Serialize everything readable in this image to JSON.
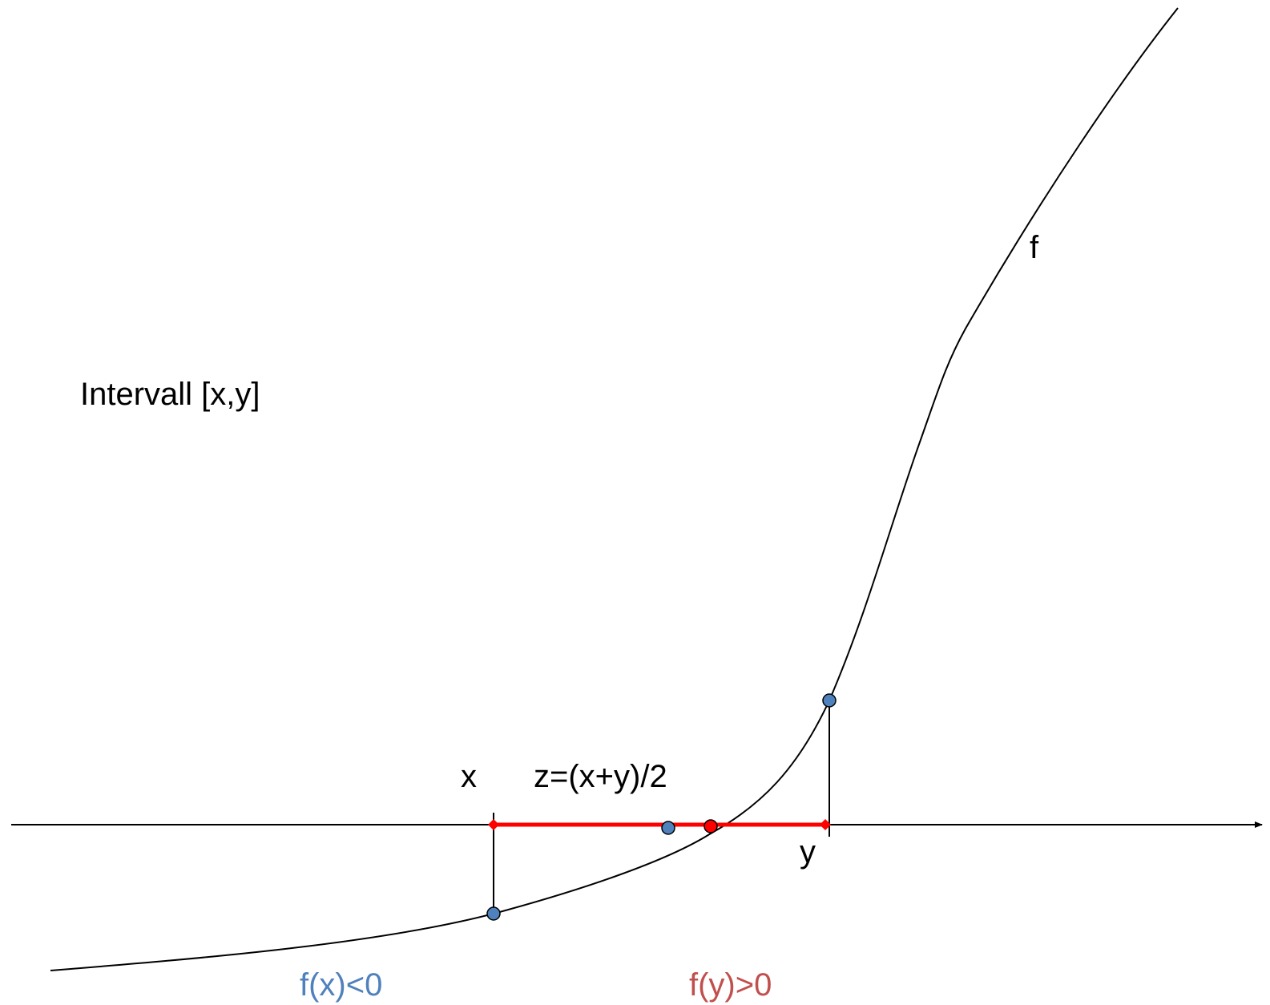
{
  "diagram": {
    "interval_label": "Intervall [x,y]",
    "curve_label": "f",
    "x_label": "x",
    "y_label": "y",
    "midpoint_label": "z=(x+y)/2",
    "fx_label": "f(x)<0",
    "fy_label": "f(y)>0"
  },
  "colors": {
    "curve": "#000000",
    "axis": "#000000",
    "interval": "#ff0000",
    "point_blue": "#4f81bd",
    "root_point": "#ff0000",
    "fx_text": "#4f81bd",
    "fy_text": "#c0504d"
  }
}
